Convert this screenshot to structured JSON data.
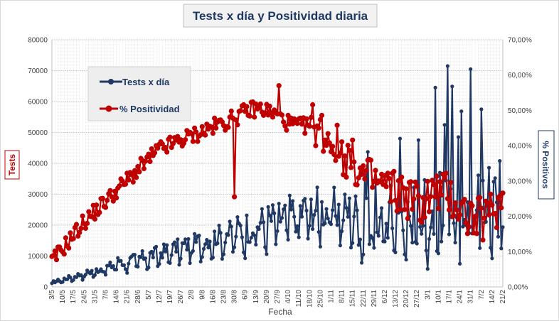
{
  "chart_data": {
    "type": "line",
    "title": "Tests x día y Positividad  diaria",
    "xlabel": "Fecha",
    "ylabel_left": "Tests",
    "ylabel_right": "% Positivos",
    "ylim_left": [
      0,
      80000
    ],
    "ylim_right": [
      0,
      70
    ],
    "yticks_left": [
      "0",
      "10000",
      "20000",
      "30000",
      "40000",
      "50000",
      "60000",
      "70000",
      "80000"
    ],
    "yticks_right": [
      "0,00%",
      "10,00%",
      "20,00%",
      "30,00%",
      "40,00%",
      "50,00%",
      "60,00%",
      "70,00%"
    ],
    "x_tick_labels": [
      "3/5",
      "10/5",
      "17/5",
      "24/5",
      "31/5",
      "7/6",
      "14/6",
      "21/6",
      "28/6",
      "5/7",
      "12/7",
      "19/7",
      "26/7",
      "2/8",
      "9/8",
      "16/8",
      "23/8",
      "30/8",
      "6/9",
      "13/9",
      "20/9",
      "27/9",
      "4/10",
      "11/10",
      "18/10",
      "25/10",
      "1/11",
      "8/11",
      "15/11",
      "22/11",
      "29/11",
      "6/12",
      "13/12",
      "20/12",
      "27/12",
      "3/1",
      "10/1",
      "17/1",
      "24/1",
      "31/1",
      "7/2",
      "14/2",
      "21/2"
    ],
    "grid": true,
    "legend_position": "top-left",
    "series": [
      {
        "name": "Tests x día",
        "axis": "left",
        "color": "#1f3864",
        "points": [
          [
            0,
            1500
          ],
          [
            3,
            1900
          ],
          [
            7,
            2000
          ],
          [
            10,
            2600
          ],
          [
            14,
            3400
          ],
          [
            17,
            3300
          ],
          [
            21,
            3700
          ],
          [
            24,
            3300
          ],
          [
            28,
            4200
          ],
          [
            31,
            4000
          ],
          [
            35,
            4400
          ],
          [
            38,
            4500
          ],
          [
            42,
            5100
          ],
          [
            45,
            5100
          ],
          [
            49,
            6000
          ],
          [
            52,
            6800
          ],
          [
            56,
            7000
          ],
          [
            59,
            7100
          ],
          [
            63,
            8200
          ],
          [
            66,
            8400
          ],
          [
            70,
            9600
          ],
          [
            73,
            9500
          ],
          [
            77,
            11000
          ],
          [
            80,
            11500
          ],
          [
            84,
            13400
          ],
          [
            87,
            13000
          ],
          [
            91,
            14500
          ],
          [
            94,
            15000
          ],
          [
            98,
            15800
          ],
          [
            101,
            16200
          ],
          [
            105,
            18300
          ],
          [
            108,
            17000
          ],
          [
            112,
            18500
          ],
          [
            115,
            20100
          ],
          [
            119,
            22000
          ],
          [
            122,
            20500
          ],
          [
            126,
            22500
          ],
          [
            129,
            23000
          ],
          [
            133,
            23500
          ],
          [
            136,
            24200
          ],
          [
            140,
            24500
          ],
          [
            143,
            24000
          ],
          [
            147,
            25000
          ],
          [
            150,
            25500
          ],
          [
            154,
            27000
          ],
          [
            157,
            27500
          ],
          [
            161,
            28500
          ],
          [
            164,
            29500
          ],
          [
            168,
            31000
          ],
          [
            171,
            28000
          ],
          [
            175,
            26500
          ],
          [
            178,
            27500
          ],
          [
            182,
            29000
          ],
          [
            185,
            28000
          ],
          [
            189,
            31500
          ],
          [
            192,
            30500
          ],
          [
            196,
            29500
          ],
          [
            199,
            31000
          ],
          [
            203,
            33500
          ],
          [
            206,
            30000
          ],
          [
            210,
            33000
          ],
          [
            213,
            34500
          ],
          [
            217,
            38000
          ],
          [
            220,
            39000
          ],
          [
            224,
            37000
          ],
          [
            227,
            32000
          ],
          [
            231,
            34000
          ],
          [
            234,
            36500
          ],
          [
            238,
            37500
          ],
          [
            241,
            37000
          ],
          [
            245,
            38500
          ],
          [
            248,
            33000
          ],
          [
            252,
            33500
          ],
          [
            255,
            37000
          ],
          [
            259,
            36000
          ],
          [
            262,
            38000
          ],
          [
            266,
            39000
          ],
          [
            269,
            36500
          ],
          [
            273,
            40000
          ],
          [
            276,
            39500
          ],
          [
            280,
            39000
          ],
          [
            283,
            41000
          ],
          [
            287,
            37500
          ],
          [
            290,
            40000
          ]
        ],
        "points_note": "",
        "values_description": ""
      },
      {
        "name": "% Positividad",
        "axis": "right",
        "color": "#c00000",
        "points": []
      }
    ]
  }
}
